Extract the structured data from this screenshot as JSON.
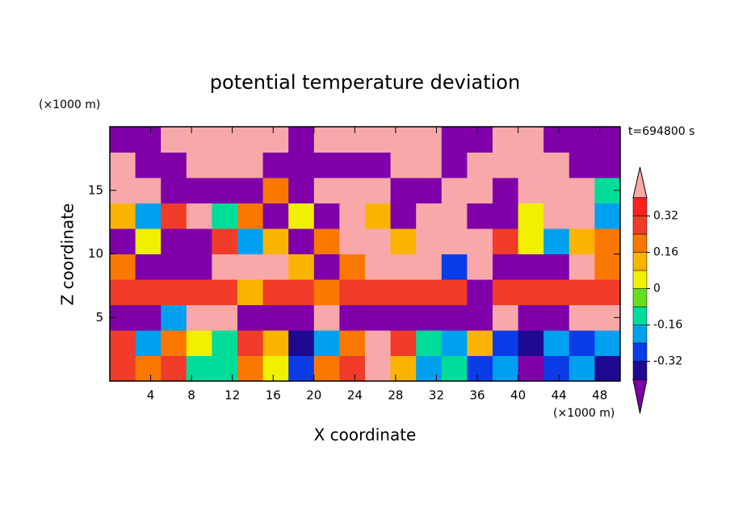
{
  "chart_data": {
    "type": "contourf",
    "title": "potential temperature deviation",
    "x_label": "X coordinate",
    "y_label": "Z coordinate",
    "x_unit": "(×1000 m)",
    "y_unit": "(×1000 m)",
    "time_label": "t=694800 s",
    "xlim": [
      0,
      50
    ],
    "ylim": [
      0,
      20
    ],
    "xticks": [
      4,
      8,
      12,
      16,
      20,
      24,
      28,
      32,
      36,
      40,
      44,
      48
    ],
    "yticks": [
      5,
      10,
      15
    ],
    "x": [
      1.25,
      3.75,
      6.25,
      8.75,
      11.25,
      13.75,
      16.25,
      18.75,
      21.25,
      23.75,
      26.25,
      28.75,
      31.25,
      33.75,
      36.25,
      38.75,
      41.25,
      43.75,
      46.25,
      48.75
    ],
    "y": [
      1,
      3,
      5,
      7,
      9,
      11,
      13,
      15,
      17,
      19
    ],
    "values": [
      [
        0.3,
        0.2,
        0.3,
        -0.1,
        -0.1,
        0.2,
        0.0,
        -0.3,
        0.2,
        0.3,
        0.5,
        0.1,
        -0.2,
        -0.1,
        -0.3,
        -0.2,
        -0.5,
        -0.3,
        -0.2,
        -0.4
      ],
      [
        0.3,
        -0.2,
        0.2,
        0.0,
        -0.1,
        0.3,
        0.1,
        -0.4,
        -0.2,
        0.2,
        0.5,
        0.3,
        -0.1,
        -0.2,
        0.1,
        -0.3,
        -0.4,
        -0.2,
        -0.3,
        -0.2
      ],
      [
        -0.5,
        -0.5,
        -0.2,
        0.5,
        0.5,
        -0.5,
        -0.5,
        -0.5,
        0.5,
        -0.5,
        -0.5,
        -0.5,
        -0.5,
        -0.5,
        -0.5,
        0.5,
        -0.5,
        -0.5,
        0.5,
        0.5
      ],
      [
        0.3,
        0.3,
        0.3,
        0.3,
        0.3,
        0.1,
        0.3,
        0.3,
        0.2,
        0.3,
        0.3,
        0.3,
        0.3,
        0.3,
        -0.5,
        0.3,
        0.3,
        0.3,
        0.3,
        0.3
      ],
      [
        0.2,
        -0.5,
        -0.5,
        -0.5,
        0.5,
        0.5,
        0.5,
        0.1,
        -0.5,
        0.2,
        0.5,
        0.5,
        0.5,
        -0.3,
        0.5,
        -0.5,
        -0.5,
        -0.5,
        0.5,
        0.2
      ],
      [
        -0.5,
        0.0,
        -0.5,
        -0.5,
        0.3,
        -0.2,
        0.1,
        -0.5,
        0.2,
        0.5,
        0.5,
        0.1,
        0.5,
        0.5,
        0.5,
        0.3,
        0.0,
        -0.2,
        0.1,
        0.2
      ],
      [
        0.1,
        -0.2,
        0.3,
        0.5,
        -0.1,
        0.2,
        -0.5,
        0.0,
        -0.5,
        0.5,
        0.1,
        -0.5,
        0.5,
        0.5,
        -0.5,
        -0.5,
        0.0,
        0.5,
        0.5,
        -0.2
      ],
      [
        0.5,
        0.5,
        -0.5,
        -0.5,
        -0.5,
        -0.5,
        0.2,
        -0.5,
        0.5,
        0.5,
        0.5,
        -0.5,
        -0.5,
        0.5,
        0.5,
        -0.5,
        0.5,
        0.5,
        0.5,
        -0.1
      ],
      [
        0.5,
        -0.5,
        -0.5,
        0.5,
        0.5,
        0.5,
        -0.5,
        -0.5,
        -0.5,
        -0.5,
        -0.5,
        0.5,
        0.5,
        -0.5,
        0.5,
        0.5,
        0.5,
        0.5,
        -0.5,
        -0.5
      ],
      [
        -0.5,
        -0.5,
        0.5,
        0.5,
        0.5,
        0.5,
        0.5,
        -0.5,
        0.5,
        0.5,
        0.5,
        0.5,
        0.5,
        -0.5,
        -0.5,
        0.5,
        0.5,
        -0.5,
        -0.5,
        -0.5
      ]
    ],
    "colorbar": {
      "levels": [
        -0.4,
        -0.32,
        -0.24,
        -0.16,
        -0.08,
        0,
        0.08,
        0.16,
        0.24,
        0.32,
        0.4
      ],
      "colors": [
        "#7f00a8",
        "#1e0a90",
        "#0a3ce8",
        "#00a0f0",
        "#00dc9a",
        "#64e01e",
        "#f0f000",
        "#fab400",
        "#fa7800",
        "#f03c28",
        "#ff2020",
        "#f8a8a8"
      ],
      "ticks": [
        -0.32,
        -0.16,
        0,
        0.16,
        0.32
      ]
    }
  }
}
